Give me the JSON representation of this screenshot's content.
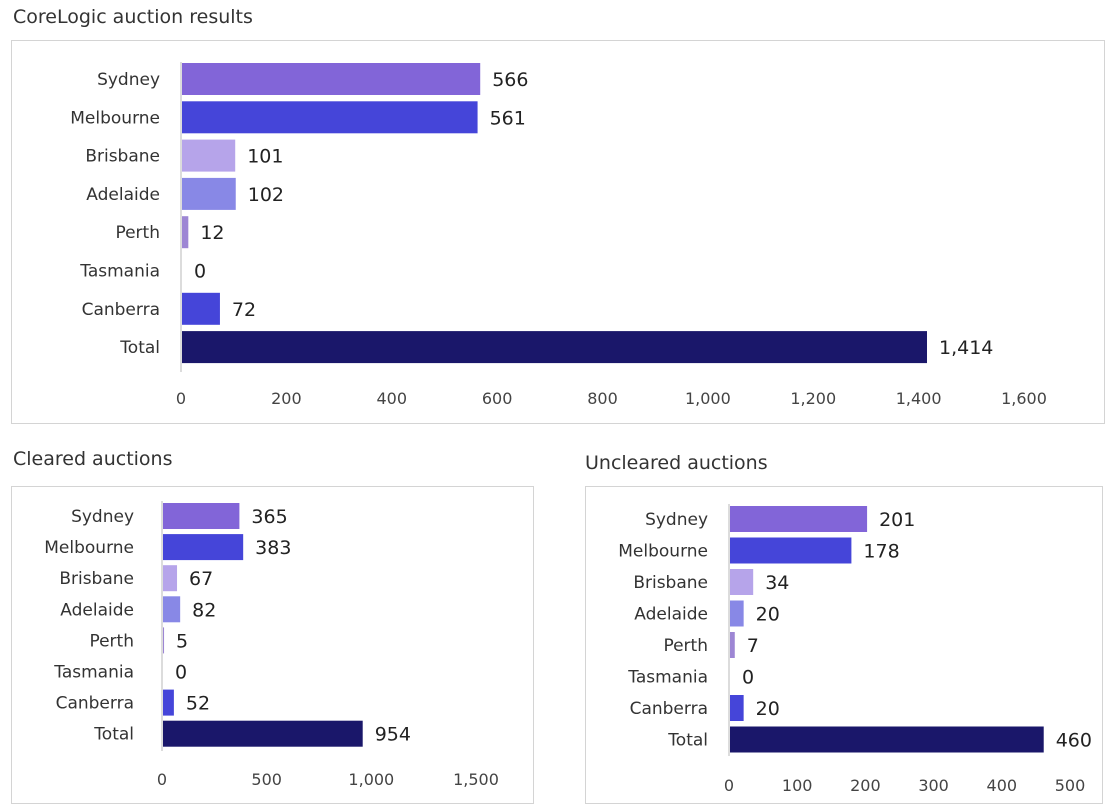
{
  "chart_data": [
    {
      "type": "bar",
      "orientation": "horizontal",
      "title": "CoreLogic auction results",
      "categories": [
        "Sydney",
        "Melbourne",
        "Brisbane",
        "Adelaide",
        "Perth",
        "Tasmania",
        "Canberra",
        "Total"
      ],
      "values": [
        566,
        561,
        101,
        102,
        12,
        0,
        72,
        1414
      ],
      "value_labels": [
        "566",
        "561",
        "101",
        "102",
        "12",
        "0",
        "72",
        "1,414"
      ],
      "colors": [
        "#8265d8",
        "#4545d9",
        "#b6a4ea",
        "#8888e6",
        "#9d86d4",
        "#cccccc",
        "#4545d9",
        "#1a176a"
      ],
      "xlim": [
        0,
        1600
      ],
      "xticks": [
        0,
        200,
        400,
        600,
        800,
        1000,
        1200,
        1400,
        1600
      ],
      "xtick_labels": [
        "0",
        "200",
        "400",
        "600",
        "800",
        "1,000",
        "1,200",
        "1,400",
        "1,600"
      ],
      "grid": false,
      "legend": "none"
    },
    {
      "type": "bar",
      "orientation": "horizontal",
      "title": "Cleared auctions",
      "categories": [
        "Sydney",
        "Melbourne",
        "Brisbane",
        "Adelaide",
        "Perth",
        "Tasmania",
        "Canberra",
        "Total"
      ],
      "values": [
        365,
        383,
        67,
        82,
        5,
        0,
        52,
        954
      ],
      "value_labels": [
        "365",
        "383",
        "67",
        "82",
        "5",
        "0",
        "52",
        "954"
      ],
      "colors": [
        "#8265d8",
        "#4545d9",
        "#b6a4ea",
        "#8888e6",
        "#9d86d4",
        "#cccccc",
        "#4545d9",
        "#1a176a"
      ],
      "xlim": [
        0,
        1500
      ],
      "xticks": [
        0,
        500,
        1000,
        1500
      ],
      "xtick_labels": [
        "0",
        "500",
        "1,000",
        "1,500"
      ],
      "grid": false,
      "legend": "none"
    },
    {
      "type": "bar",
      "orientation": "horizontal",
      "title": "Uncleared auctions",
      "categories": [
        "Sydney",
        "Melbourne",
        "Brisbane",
        "Adelaide",
        "Perth",
        "Tasmania",
        "Canberra",
        "Total"
      ],
      "values": [
        201,
        178,
        34,
        20,
        7,
        0,
        20,
        460
      ],
      "value_labels": [
        "201",
        "178",
        "34",
        "20",
        "7",
        "0",
        "20",
        "460"
      ],
      "colors": [
        "#8265d8",
        "#4545d9",
        "#b6a4ea",
        "#8888e6",
        "#9d86d4",
        "#cccccc",
        "#4545d9",
        "#1a176a"
      ],
      "xlim": [
        0,
        500
      ],
      "xticks": [
        0,
        100,
        200,
        300,
        400,
        500
      ],
      "xtick_labels": [
        "0",
        "100",
        "200",
        "300",
        "400",
        "500"
      ],
      "grid": false,
      "legend": "none"
    }
  ]
}
